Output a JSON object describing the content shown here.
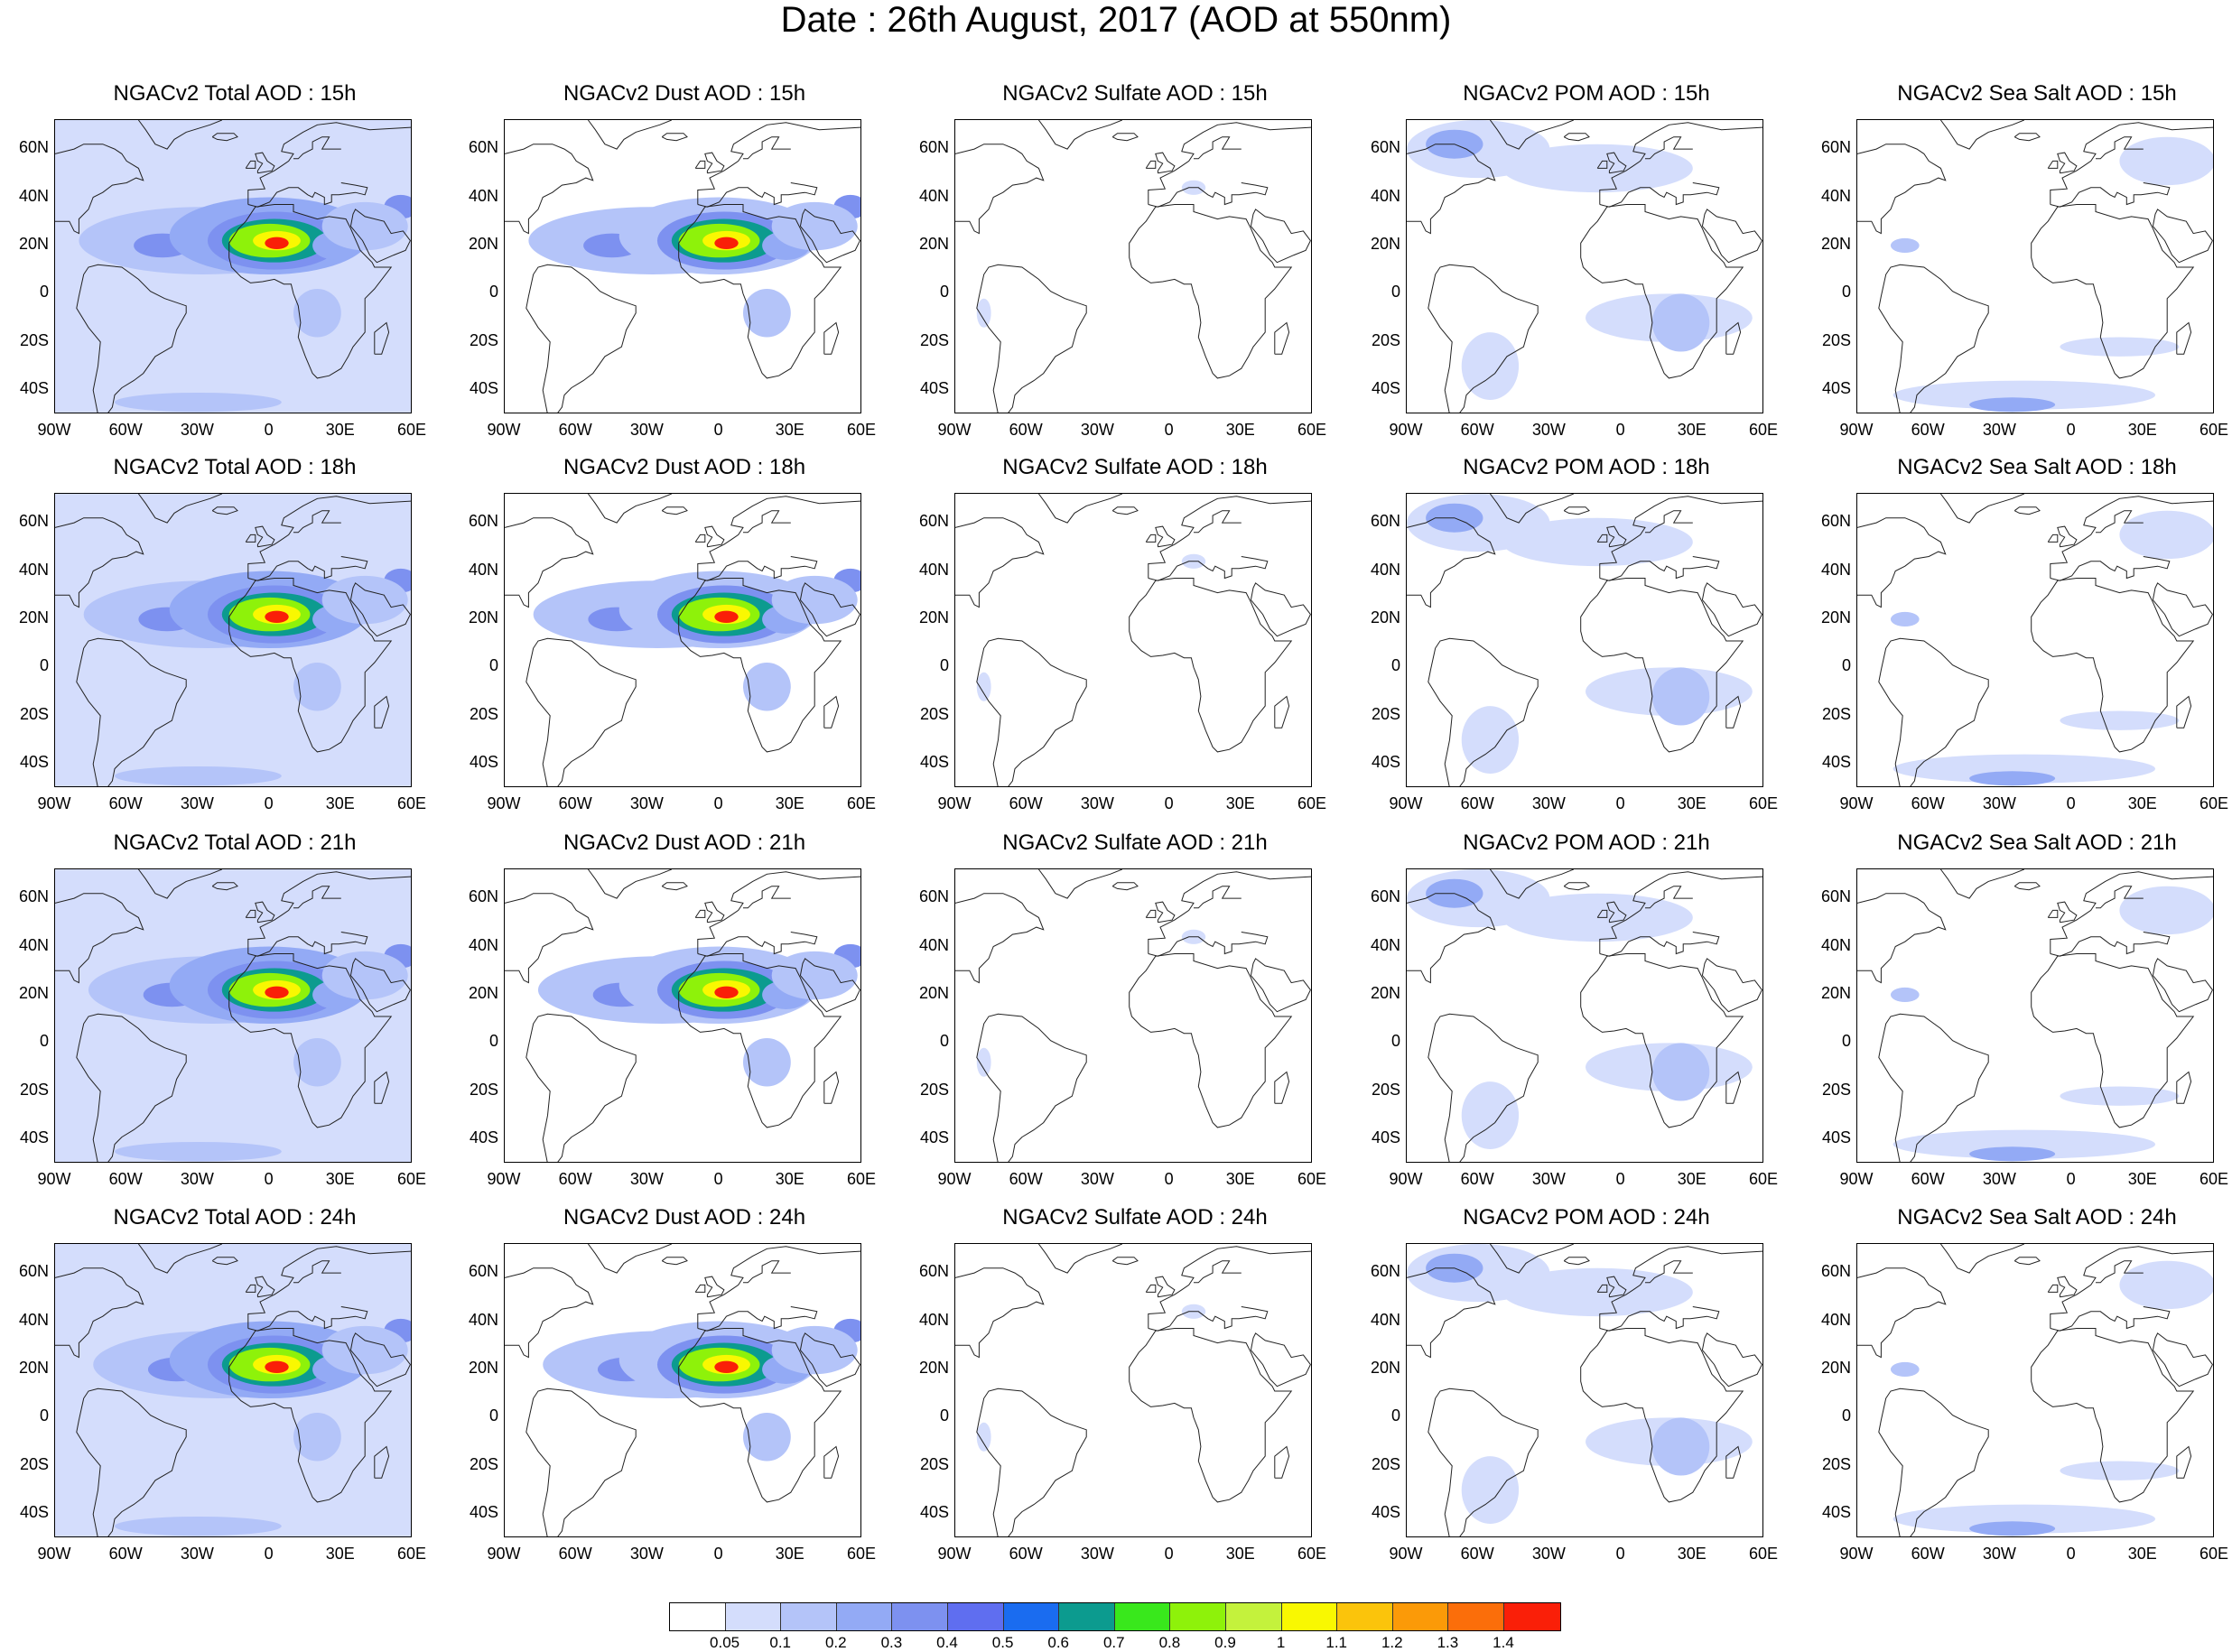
{
  "title": "Date : 26th August, 2017 (AOD at 550nm)",
  "panels": [
    {
      "title": "NGACv2 Total AOD : 15h",
      "species": "total"
    },
    {
      "title": "NGACv2 Dust AOD : 15h",
      "species": "dust"
    },
    {
      "title": "NGACv2 Sulfate AOD : 15h",
      "species": "sulfate"
    },
    {
      "title": "NGACv2 POM AOD : 15h",
      "species": "pom"
    },
    {
      "title": "NGACv2 Sea Salt AOD : 15h",
      "species": "seasalt"
    },
    {
      "title": "NGACv2 Total AOD : 18h",
      "species": "total"
    },
    {
      "title": "NGACv2 Dust AOD : 18h",
      "species": "dust"
    },
    {
      "title": "NGACv2 Sulfate AOD : 18h",
      "species": "sulfate"
    },
    {
      "title": "NGACv2 POM AOD : 18h",
      "species": "pom"
    },
    {
      "title": "NGACv2 Sea Salt AOD : 18h",
      "species": "seasalt"
    },
    {
      "title": "NGACv2 Total AOD : 21h",
      "species": "total"
    },
    {
      "title": "NGACv2 Dust AOD : 21h",
      "species": "dust"
    },
    {
      "title": "NGACv2 Sulfate AOD : 21h",
      "species": "sulfate"
    },
    {
      "title": "NGACv2 POM AOD : 21h",
      "species": "pom"
    },
    {
      "title": "NGACv2 Sea Salt AOD : 21h",
      "species": "seasalt"
    },
    {
      "title": "NGACv2 Total AOD : 24h",
      "species": "total"
    },
    {
      "title": "NGACv2 Dust AOD : 24h",
      "species": "dust"
    },
    {
      "title": "NGACv2 Sulfate AOD : 24h",
      "species": "sulfate"
    },
    {
      "title": "NGACv2 POM AOD : 24h",
      "species": "pom"
    },
    {
      "title": "NGACv2 Sea Salt  AOD : 24h",
      "species": "seasalt"
    }
  ],
  "lat_labels": [
    "60N",
    "40N",
    "20N",
    "0",
    "20S",
    "40S"
  ],
  "lon_labels": [
    "90W",
    "60W",
    "30W",
    "0",
    "30E",
    "60E"
  ],
  "colorbar": {
    "colors": [
      "#ffffff",
      "#d4ddfc",
      "#b4c4f9",
      "#93aaf5",
      "#7d91f0",
      "#5f6ef0",
      "#1a6cf0",
      "#0c9b8f",
      "#39e81c",
      "#8ef20a",
      "#c4f23c",
      "#f9f801",
      "#fbc40b",
      "#fb9a08",
      "#fb6e0a",
      "#fa1f08"
    ],
    "labels": [
      "0.05",
      "0.1",
      "0.2",
      "0.3",
      "0.4",
      "0.5",
      "0.6",
      "0.7",
      "0.8",
      "0.9",
      "1",
      "1.1",
      "1.2",
      "1.3",
      "1.4"
    ]
  }
}
